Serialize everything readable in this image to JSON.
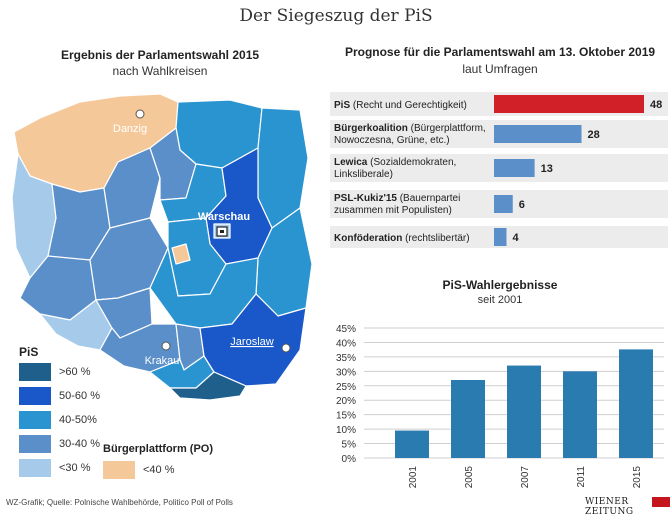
{
  "title": "Der Siegeszug der PiS",
  "map": {
    "title": "Ergebnis der Parlamentswahl 2015",
    "subtitle": "nach Wahlkreisen",
    "cities": [
      "Danzig",
      "Warschau",
      "Krakau",
      "Jaroslaw"
    ],
    "legend_pis_title": "PiS",
    "legend_pis": [
      {
        "label": ">60 %",
        "color": "#1f5f8b"
      },
      {
        "label": "50-60 %",
        "color": "#1a57c8"
      },
      {
        "label": "40-50%",
        "color": "#2a94d0"
      },
      {
        "label": "30-40 %",
        "color": "#5b8fc9"
      },
      {
        "label": "<30 %",
        "color": "#a6cbea"
      }
    ],
    "legend_po_title": "Bürgerplattform (PO)",
    "legend_po": [
      {
        "label": "<40 %",
        "color": "#f5c89a"
      }
    ]
  },
  "chart_data": [
    {
      "type": "bar",
      "orientation": "horizontal",
      "title": "Prognose für die Parlamentswahl am 13. Oktober 2019",
      "subtitle": "laut Umfragen",
      "categories": [
        {
          "bold": "PiS",
          "rest": " (Recht und Gerechtigkeit)"
        },
        {
          "bold": "Bürgerkoalition",
          "rest": " (Bürgerplattform, Nowoczesna, Grüne, etc.)"
        },
        {
          "bold": "Lewica",
          "rest": " (Sozialdemokraten, Linksliberale)"
        },
        {
          "bold": "PSL-Kukiz'15",
          "rest": " (Bauernpartei zusammen mit Populisten)"
        },
        {
          "bold": "Konföderation",
          "rest": " (rechtslibertär)"
        }
      ],
      "values": [
        48,
        28,
        13,
        6,
        4
      ],
      "colors": [
        "#d12027",
        "#5b8fc9",
        "#5b8fc9",
        "#5b8fc9",
        "#5b8fc9"
      ],
      "xlim": [
        0,
        48
      ]
    },
    {
      "type": "bar",
      "title": "PiS-Wahlergebnisse",
      "subtitle": "seit 2001",
      "categories": [
        "2001",
        "2005",
        "2007",
        "2011",
        "2015"
      ],
      "values": [
        9.5,
        27,
        32,
        30,
        37.6
      ],
      "color": "#2a7bb0",
      "ylim": [
        0,
        45
      ],
      "yticks": [
        "0%",
        "5%",
        "10%",
        "15%",
        "20%",
        "25%",
        "30%",
        "35%",
        "40%",
        "45%"
      ],
      "grid": true
    }
  ],
  "footer": {
    "source": "WZ-Grafik; Quelle: Polnische Wahlbehörde, Politico Poll of Polls",
    "brand": "WIENER ZEITUNG"
  }
}
